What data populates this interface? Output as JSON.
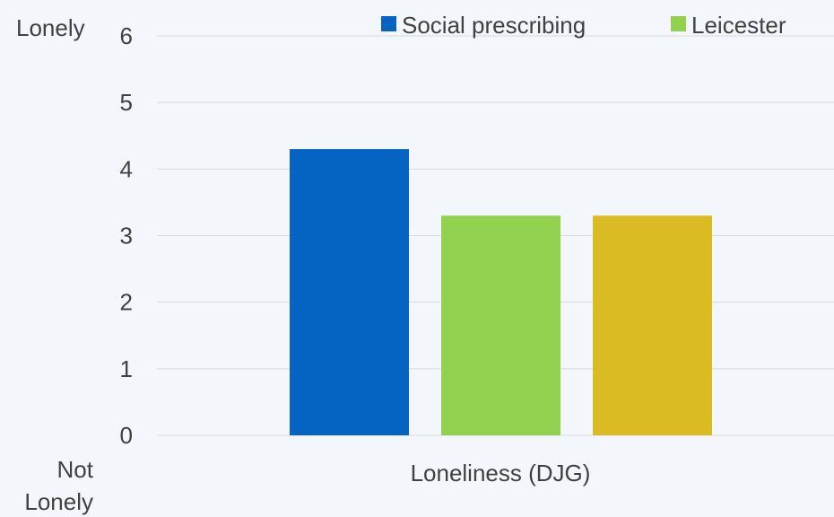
{
  "chart_data": {
    "type": "bar",
    "categories": [
      "Loneliness (DJG)"
    ],
    "series": [
      {
        "name": "Social prescribing",
        "values": [
          4.3
        ],
        "color": "#0563c1"
      },
      {
        "name": "Leicester",
        "values": [
          3.3
        ],
        "color": "#92d050"
      },
      {
        "values": [
          3.3
        ],
        "color": "#dbbb23"
      }
    ],
    "y_ticks": [
      "0",
      "1",
      "2",
      "3",
      "4",
      "5",
      "6"
    ],
    "ylim": [
      0,
      6
    ],
    "y_top_label": "Lonely",
    "y_bottom_label": [
      "Not",
      "Lonely"
    ],
    "grid": true,
    "legend_position": "top-right",
    "colors": {
      "background": "#f3f7fb",
      "grid": "#d9d9d9",
      "text": "#404040"
    }
  }
}
